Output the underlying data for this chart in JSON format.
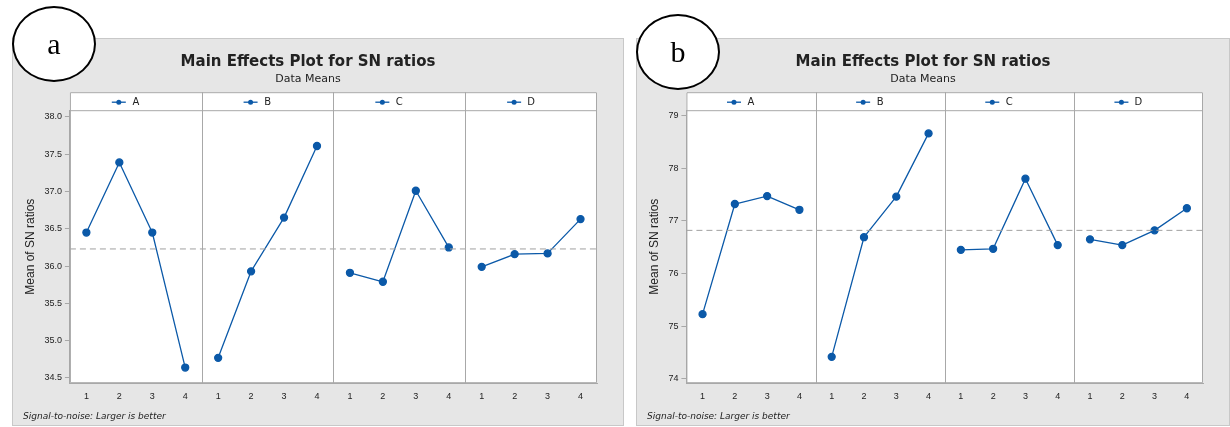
{
  "chart_data": [
    {
      "type": "line",
      "title": "Main Effects Plot for SN ratios",
      "subtitle": "Data Means",
      "ylabel": "Mean of SN ratios",
      "categories": [
        "1",
        "2",
        "3",
        "4",
        "1",
        "2",
        "3",
        "4",
        "1",
        "2",
        "3",
        "4",
        "1",
        "2",
        "3",
        "4"
      ],
      "series": [
        {
          "name": "A",
          "color": "#0b59a8",
          "values": [
            36.45,
            37.39,
            36.45,
            34.64,
            null,
            null,
            null,
            null,
            null,
            null,
            null,
            null,
            null,
            null,
            null,
            null
          ]
        },
        {
          "name": "B",
          "color": "#0b59a8",
          "values": [
            null,
            null,
            null,
            null,
            34.77,
            35.93,
            36.65,
            37.61,
            null,
            null,
            null,
            null,
            null,
            null,
            null,
            null
          ]
        },
        {
          "name": "C",
          "color": "#0b59a8",
          "values": [
            null,
            null,
            null,
            null,
            null,
            null,
            null,
            null,
            35.91,
            35.79,
            37.01,
            36.25,
            null,
            null,
            null,
            null
          ]
        },
        {
          "name": "D",
          "color": "#0b59a8",
          "values": [
            null,
            null,
            null,
            null,
            null,
            null,
            null,
            null,
            null,
            null,
            null,
            null,
            35.99,
            36.16,
            36.17,
            36.63
          ]
        }
      ],
      "ylim": [
        34.43,
        38.09
      ],
      "yticks": [
        {
          "value": 34.5,
          "label": "34.5"
        },
        {
          "value": 35,
          "label": "35.0"
        },
        {
          "value": 35.5,
          "label": "35.5"
        },
        {
          "value": 36,
          "label": "36.0"
        },
        {
          "value": 36.5,
          "label": "36.5"
        },
        {
          "value": 37,
          "label": "37.0"
        },
        {
          "value": 37.5,
          "label": "37.5"
        },
        {
          "value": 38,
          "label": "38.0"
        }
      ],
      "ref_lines": [
        {
          "axis": "y",
          "value": 36.23,
          "color": "#a0a0a0",
          "line_style": "dashed"
        }
      ],
      "marker": "circle",
      "line_style": "solid",
      "grid": false,
      "legend": "top",
      "annotations": [
        "Signal-to-noise: Larger is better",
        "a"
      ]
    },
    {
      "type": "line",
      "title": "Main Effects Plot for SN ratios",
      "subtitle": "Data Means",
      "ylabel": "Mean of SN ratios",
      "categories": [
        "1",
        "2",
        "3",
        "4",
        "1",
        "2",
        "3",
        "4",
        "1",
        "2",
        "3",
        "4",
        "1",
        "2",
        "3",
        "4"
      ],
      "series": [
        {
          "name": "A",
          "color": "#0b59a8",
          "values": [
            75.23,
            77.32,
            77.47,
            77.21,
            null,
            null,
            null,
            null,
            null,
            null,
            null,
            null,
            null,
            null,
            null,
            null
          ]
        },
        {
          "name": "B",
          "color": "#0b59a8",
          "values": [
            null,
            null,
            null,
            null,
            74.42,
            76.69,
            77.46,
            78.66,
            null,
            null,
            null,
            null,
            null,
            null,
            null,
            null
          ]
        },
        {
          "name": "C",
          "color": "#0b59a8",
          "values": [
            null,
            null,
            null,
            null,
            null,
            null,
            null,
            null,
            76.45,
            76.47,
            77.8,
            76.54,
            null,
            null,
            null,
            null
          ]
        },
        {
          "name": "D",
          "color": "#0b59a8",
          "values": [
            null,
            null,
            null,
            null,
            null,
            null,
            null,
            null,
            null,
            null,
            null,
            null,
            76.65,
            76.54,
            76.82,
            77.24
          ]
        }
      ],
      "ylim": [
        73.92,
        79.1
      ],
      "yticks": [
        74,
        75,
        76,
        77,
        78,
        79
      ],
      "ref_lines": [
        {
          "axis": "y",
          "value": 76.82,
          "color": "#a0a0a0",
          "line_style": "dashed"
        }
      ],
      "marker": "circle",
      "line_style": "solid",
      "grid": false,
      "legend": "top",
      "annotations": [
        "Signal-to-noise: Larger is better",
        "b"
      ]
    }
  ]
}
